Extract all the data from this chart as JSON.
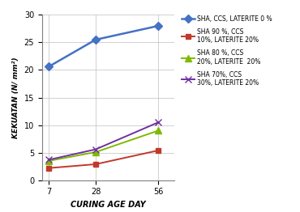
{
  "x": [
    7,
    28,
    56
  ],
  "series": [
    {
      "label": "SHA, CCS, LATERITE 0 %",
      "values": [
        20.6,
        25.5,
        28.0
      ],
      "color": "#4472C4",
      "marker": "D",
      "markersize": 5,
      "linewidth": 1.8
    },
    {
      "label": "SHA 90 %, CCS\n10%, LATERITE 20%",
      "values": [
        2.2,
        2.9,
        5.4
      ],
      "color": "#C0392B",
      "marker": "s",
      "markersize": 5,
      "linewidth": 1.4
    },
    {
      "label": "SHA 80 %, CCS\n20%, LATERITE  20%",
      "values": [
        3.5,
        5.1,
        9.0
      ],
      "color": "#7FBA00",
      "marker": "^",
      "markersize": 6,
      "linewidth": 1.4
    },
    {
      "label": "SHA 70%, CCS\n30%, LATERITE 20%",
      "values": [
        3.7,
        5.6,
        10.5
      ],
      "color": "#7030A0",
      "marker": "x",
      "markersize": 6,
      "linewidth": 1.4
    }
  ],
  "xlabel": "CURING AGE DAY",
  "ylabel": "KEKUATAN (N/ mm²)",
  "ylim": [
    0,
    30
  ],
  "yticks": [
    0,
    5,
    10,
    15,
    20,
    25,
    30
  ],
  "xticks": [
    7,
    28,
    56
  ],
  "background_color": "#FFFFFF",
  "grid_color": "#BFBFBF"
}
